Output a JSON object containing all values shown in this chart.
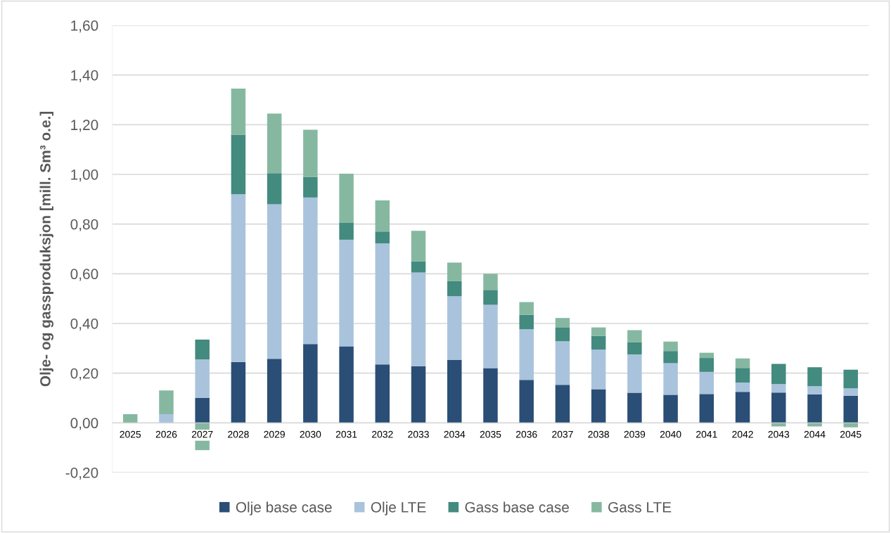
{
  "chart_data": {
    "type": "bar",
    "stacked": true,
    "ylabel": "Olje- og gassproduksjon [mill. Sm³ o.e.]",
    "categories": [
      "2025",
      "2026",
      "2027",
      "2028",
      "2029",
      "2030",
      "2031",
      "2032",
      "2033",
      "2034",
      "2035",
      "2036",
      "2037",
      "2038",
      "2039",
      "2040",
      "2041",
      "2042",
      "2043",
      "2044",
      "2045"
    ],
    "series": [
      {
        "name": "Olje base case",
        "color": "#2a4e75",
        "values": [
          0,
          0,
          0.1,
          0.245,
          0.258,
          0.317,
          0.308,
          0.235,
          0.228,
          0.253,
          0.22,
          0.173,
          0.153,
          0.135,
          0.121,
          0.113,
          0.116,
          0.125,
          0.122,
          0.115,
          0.109
        ]
      },
      {
        "name": "Olje LTE",
        "color": "#a9c3dd",
        "values": [
          0,
          0.035,
          0.155,
          0.675,
          0.622,
          0.59,
          0.429,
          0.487,
          0.377,
          0.257,
          0.255,
          0.204,
          0.175,
          0.16,
          0.154,
          0.127,
          0.089,
          0.037,
          0.034,
          0.032,
          0.03
        ]
      },
      {
        "name": "Gass base case",
        "color": "#438a7f",
        "values": [
          0,
          0,
          0.08,
          0.24,
          0.125,
          0.083,
          0.068,
          0.048,
          0.045,
          0.06,
          0.06,
          0.058,
          0.055,
          0.055,
          0.05,
          0.049,
          0.056,
          0.059,
          0.081,
          0.077,
          0.075
        ]
      },
      {
        "name": "Gass LTE",
        "color": "#86b8a1",
        "values": [
          0.035,
          0.095,
          -0.11,
          0.185,
          0.24,
          0.19,
          0.198,
          0.125,
          0.123,
          0.075,
          0.065,
          0.051,
          0.039,
          0.034,
          0.048,
          0.038,
          0.021,
          0.038,
          -0.015,
          -0.015,
          -0.018
        ]
      }
    ],
    "ylim": [
      -0.2,
      1.6
    ],
    "yticks": [
      {
        "value": -0.2,
        "label": "-0,20"
      },
      {
        "value": 0,
        "label": "0,00"
      },
      {
        "value": 0.2,
        "label": "0,20"
      },
      {
        "value": 0.4,
        "label": "0,40"
      },
      {
        "value": 0.6,
        "label": "0,60"
      },
      {
        "value": 0.8,
        "label": "0,80"
      },
      {
        "value": 1.0,
        "label": "1,00"
      },
      {
        "value": 1.2,
        "label": "1,20"
      },
      {
        "value": 1.4,
        "label": "1,40"
      },
      {
        "value": 1.6,
        "label": "1,60"
      }
    ],
    "grid": "y",
    "legend": "bottom"
  }
}
